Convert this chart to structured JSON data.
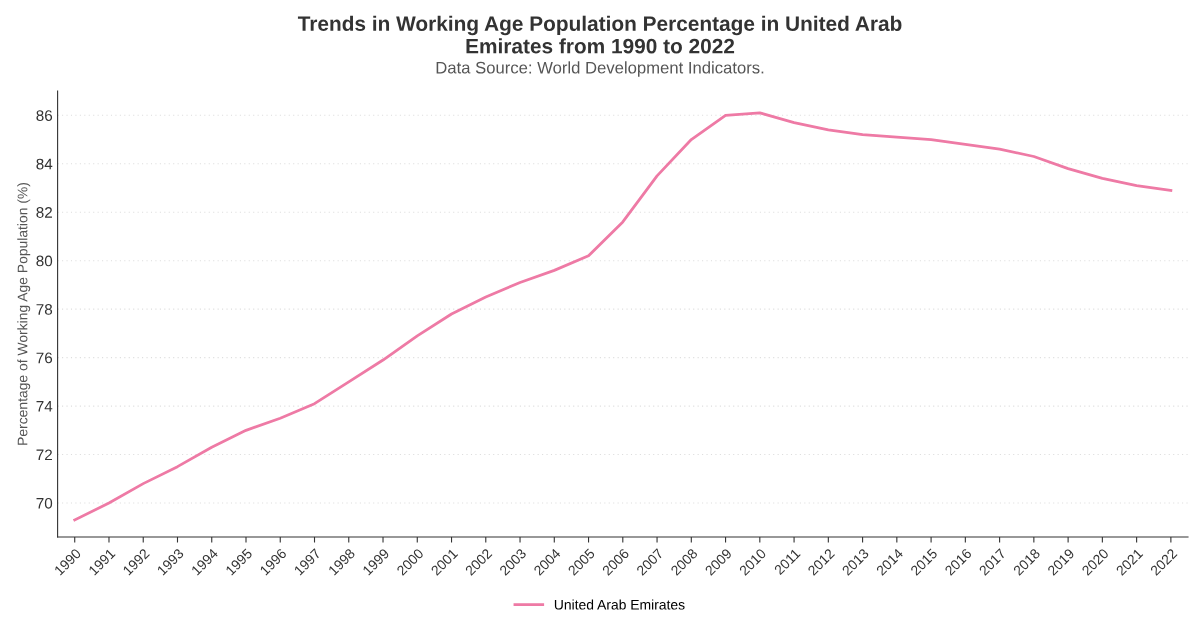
{
  "chart_data": {
    "type": "line",
    "title": "Trends in Working Age Population Percentage in United Arab\nEmirates from 1990 to 2022",
    "subtitle": "Data Source: World Development Indicators.",
    "ylabel": "Percentage of Working Age Population (%)",
    "categories": [
      "1990",
      "1991",
      "1992",
      "1993",
      "1994",
      "1995",
      "1996",
      "1997",
      "1998",
      "1999",
      "2000",
      "2001",
      "2002",
      "2003",
      "2004",
      "2005",
      "2006",
      "2007",
      "2008",
      "2009",
      "2010",
      "2011",
      "2012",
      "2013",
      "2014",
      "2015",
      "2016",
      "2017",
      "2018",
      "2019",
      "2020",
      "2021",
      "2022"
    ],
    "series": [
      {
        "name": "United Arab Emirates",
        "color": "#ee7aa5",
        "values": [
          69.3,
          70.0,
          70.8,
          71.5,
          72.3,
          73.0,
          73.5,
          74.1,
          75.0,
          75.9,
          76.9,
          77.8,
          78.5,
          79.1,
          79.6,
          80.2,
          81.6,
          83.5,
          85.0,
          86.0,
          86.1,
          85.7,
          85.4,
          85.2,
          85.1,
          85.0,
          84.8,
          84.6,
          84.3,
          83.8,
          83.4,
          83.1,
          82.9
        ]
      }
    ],
    "ylim": [
      68.6,
      87
    ],
    "yticks": [
      70,
      72,
      74,
      76,
      78,
      80,
      82,
      84,
      86
    ],
    "grid": "y",
    "legend": "bottom",
    "marker": "none",
    "line_style": "solid"
  }
}
